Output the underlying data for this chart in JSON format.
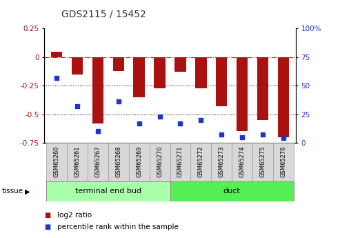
{
  "title": "GDS2115 / 15452",
  "samples": [
    "GSM65260",
    "GSM65261",
    "GSM65267",
    "GSM65268",
    "GSM65269",
    "GSM65270",
    "GSM65271",
    "GSM65272",
    "GSM65273",
    "GSM65274",
    "GSM65275",
    "GSM65276"
  ],
  "log2_ratio": [
    0.05,
    -0.15,
    -0.58,
    -0.12,
    -0.35,
    -0.27,
    -0.13,
    -0.27,
    -0.43,
    -0.65,
    -0.55,
    -0.7
  ],
  "percentile_rank": [
    57,
    32,
    10,
    36,
    17,
    23,
    17,
    20,
    7,
    5,
    7,
    4
  ],
  "ylim_left": [
    -0.75,
    0.25
  ],
  "ylim_right": [
    0,
    100
  ],
  "yticks_left": [
    0.25,
    0,
    -0.25,
    -0.5,
    -0.75
  ],
  "yticks_right": [
    100,
    75,
    50,
    25,
    0
  ],
  "ytick_labels_right": [
    "100%",
    "75",
    "50",
    "25",
    "0"
  ],
  "bar_color": "#aa1111",
  "dot_color": "#2233cc",
  "hline_color": "#cc2222",
  "grid_color": "#000000",
  "bg_color": "#ffffff",
  "tissue_labels": [
    "terminal end bud",
    "duct"
  ],
  "tissue_split": 6,
  "tissue_color1": "#aaffaa",
  "tissue_color2": "#55ee55",
  "sample_box_color": "#dddddd",
  "legend_items": [
    "log2 ratio",
    "percentile rank within the sample"
  ],
  "legend_colors": [
    "#aa1111",
    "#2233cc"
  ]
}
